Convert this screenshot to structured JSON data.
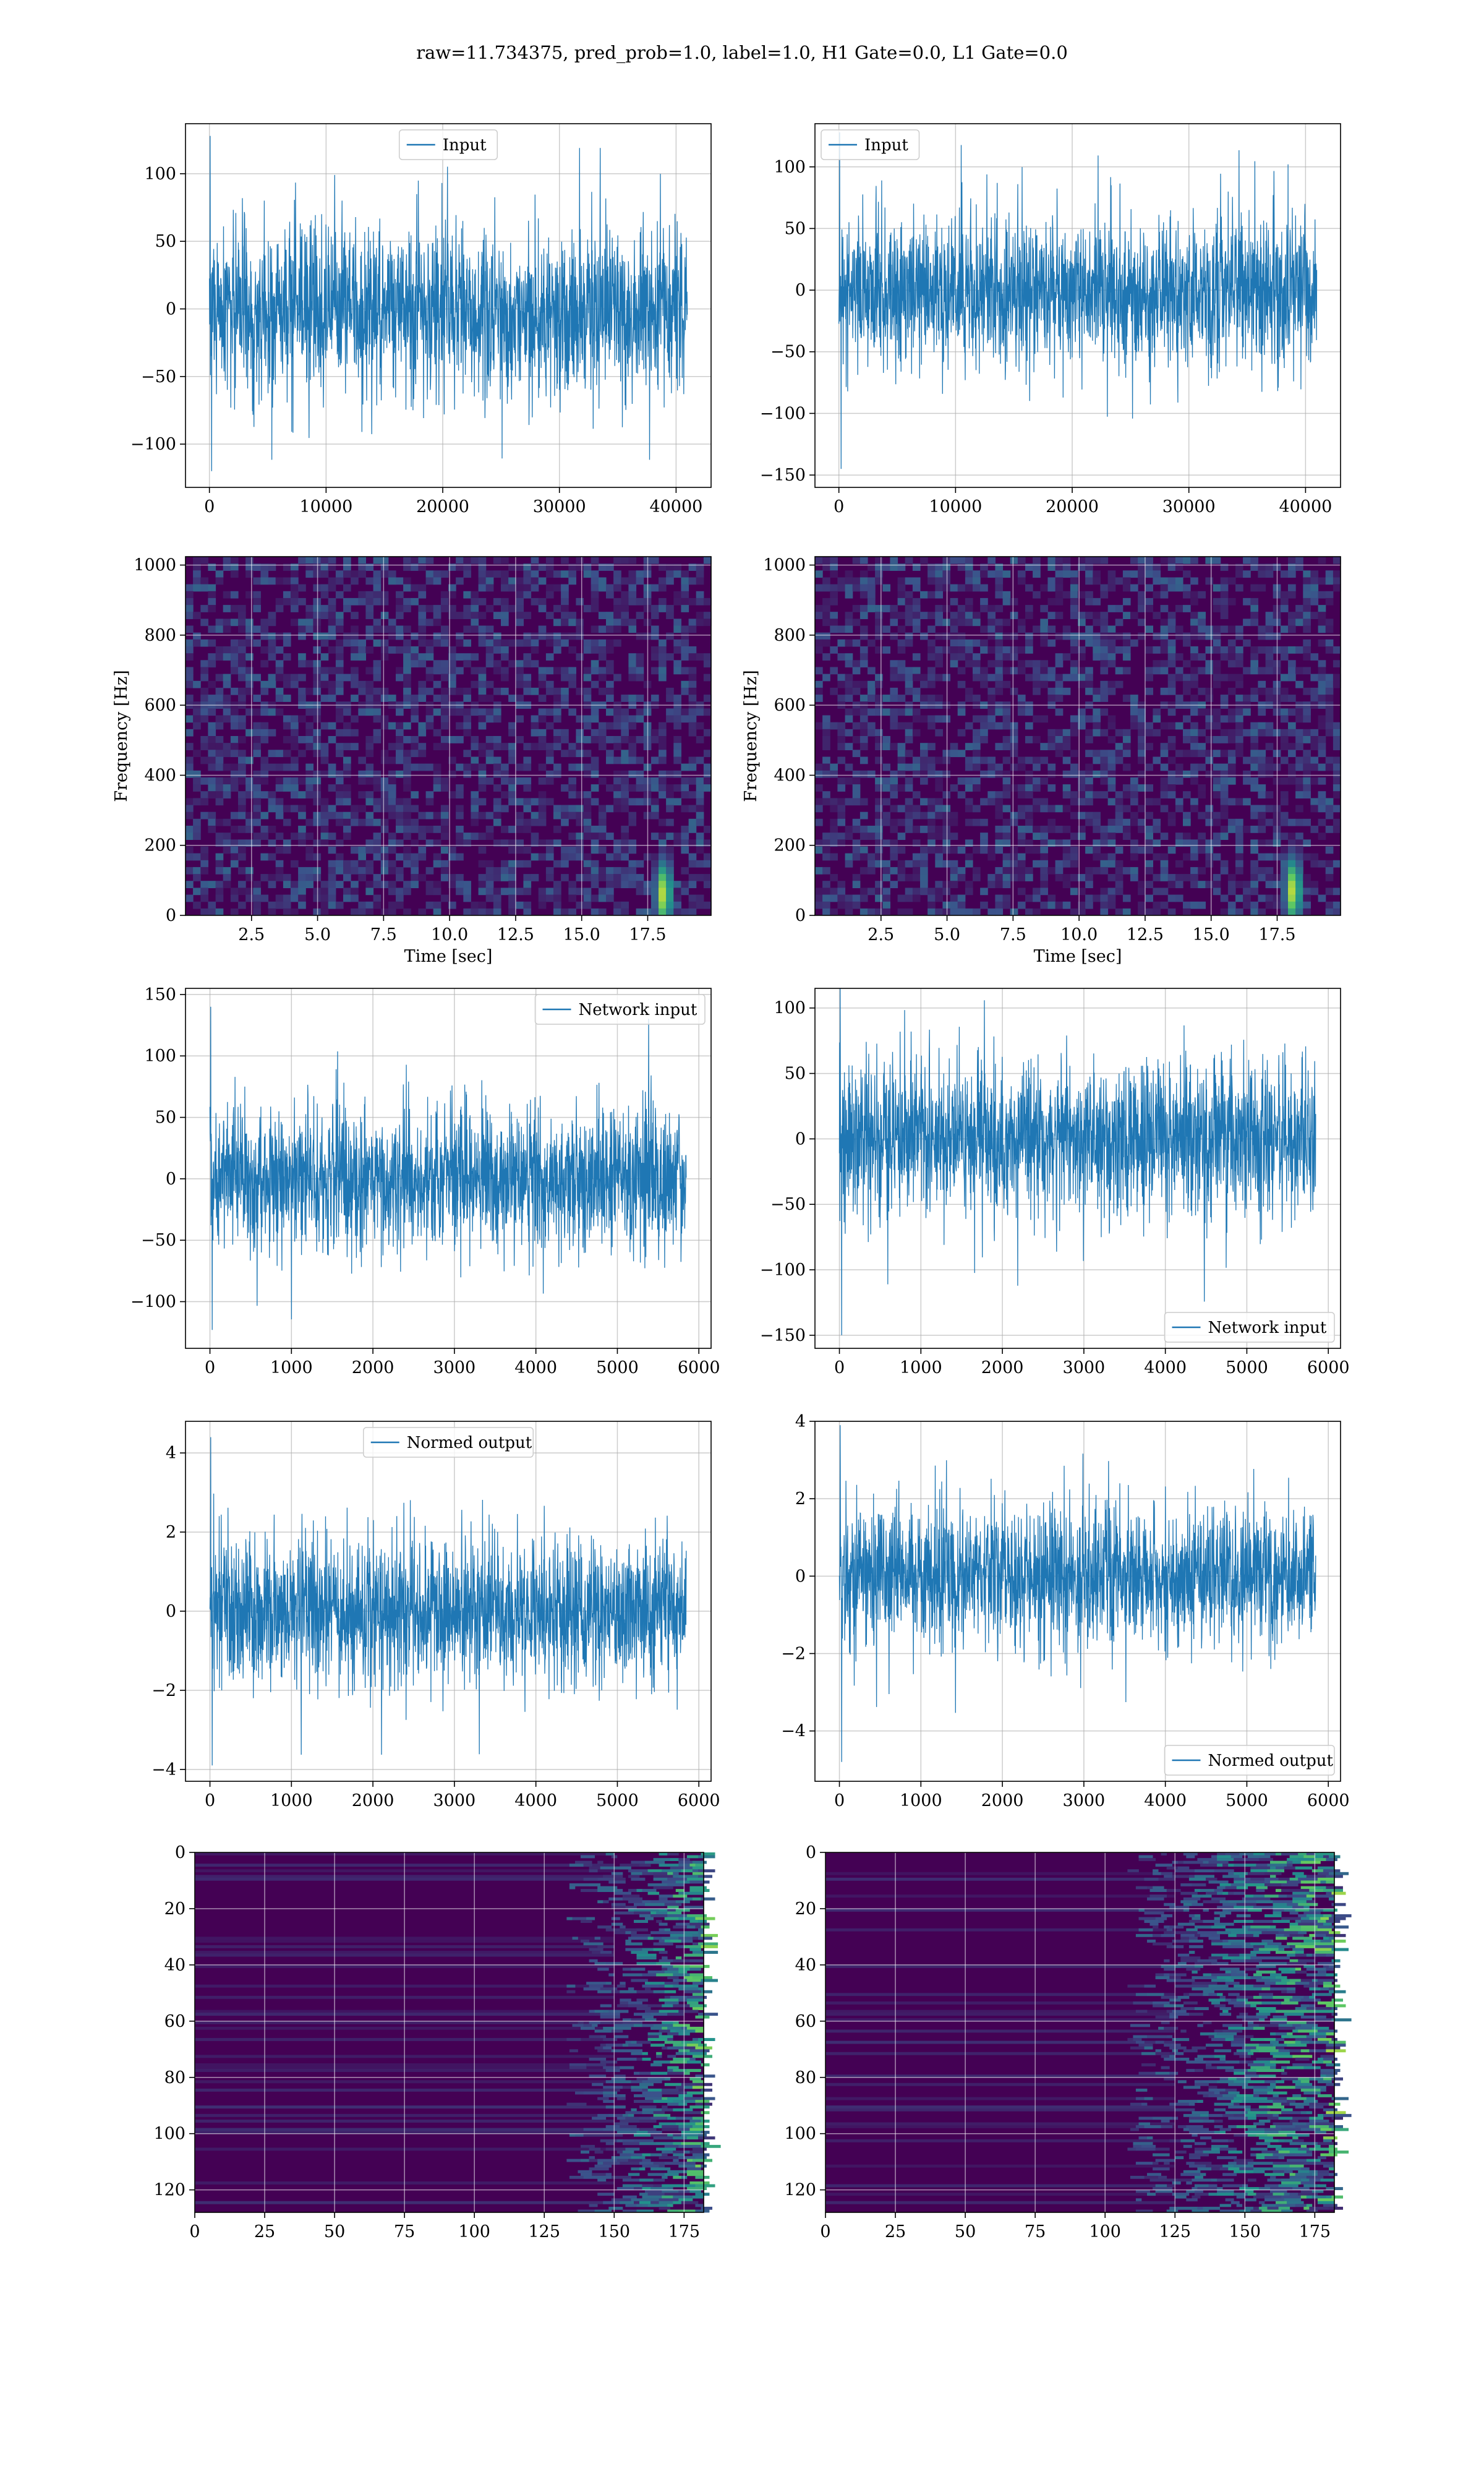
{
  "suptitle": "raw=11.734375, pred_prob=1.0, label=1.0, H1 Gate=0.0, L1 Gate=0.0",
  "colors": {
    "series": "#1f77b4",
    "grid": "#b0b0b0",
    "viridis_dark": "#440154"
  },
  "chart_data": [
    {
      "id": "ts-input-h1",
      "type": "line",
      "legend": "Input",
      "legend_loc": "upper center",
      "xlim": [
        -2050,
        43000
      ],
      "ylim": [
        -132,
        137
      ],
      "xticks": [
        0,
        10000,
        20000,
        30000,
        40000
      ],
      "xtick_labels": [
        "0",
        "10000",
        "20000",
        "30000",
        "40000"
      ],
      "yticks": [
        -100,
        -50,
        0,
        50,
        100
      ],
      "ytick_labels": [
        "−100",
        "−50",
        "0",
        "50",
        "100"
      ],
      "x_range": [
        0,
        40960
      ],
      "envelope": {
        "rms": 30,
        "max": 128,
        "min": -120
      },
      "grid": true
    },
    {
      "id": "ts-input-l1",
      "type": "line",
      "legend": "Input",
      "legend_loc": "upper left",
      "xlim": [
        -2050,
        43000
      ],
      "ylim": [
        -160,
        135
      ],
      "xticks": [
        0,
        10000,
        20000,
        30000,
        40000
      ],
      "xtick_labels": [
        "0",
        "10000",
        "20000",
        "30000",
        "40000"
      ],
      "yticks": [
        -150,
        -100,
        -50,
        0,
        50,
        100
      ],
      "ytick_labels": [
        "−150",
        "−100",
        "−50",
        "0",
        "50",
        "100"
      ],
      "x_range": [
        0,
        40960
      ],
      "envelope": {
        "rms": 30,
        "max": 128,
        "min": -145
      },
      "grid": true
    },
    {
      "id": "spec-h1",
      "type": "heatmap",
      "colormap": "viridis",
      "xlabel": "Time [sec]",
      "ylabel": "Frequency [Hz]",
      "xlim": [
        0,
        19.9
      ],
      "ylim": [
        0,
        1024
      ],
      "xticks": [
        2.5,
        5.0,
        7.5,
        10.0,
        12.5,
        15.0,
        17.5
      ],
      "xtick_labels": [
        "2.5",
        "5.0",
        "7.5",
        "10.0",
        "12.5",
        "15.0",
        "17.5"
      ],
      "yticks": [
        0,
        200,
        400,
        600,
        800,
        1000
      ],
      "ytick_labels": [
        "0",
        "200",
        "400",
        "600",
        "800",
        "1000"
      ],
      "hotspot": {
        "time": 18.1,
        "freq": 60
      },
      "grid": true
    },
    {
      "id": "spec-l1",
      "type": "heatmap",
      "colormap": "viridis",
      "xlabel": "Time [sec]",
      "ylabel": "Frequency [Hz]",
      "xlim": [
        0,
        19.9
      ],
      "ylim": [
        0,
        1024
      ],
      "xticks": [
        2.5,
        5.0,
        7.5,
        10.0,
        12.5,
        15.0,
        17.5
      ],
      "xtick_labels": [
        "2.5",
        "5.0",
        "7.5",
        "10.0",
        "12.5",
        "15.0",
        "17.5"
      ],
      "yticks": [
        0,
        200,
        400,
        600,
        800,
        1000
      ],
      "ytick_labels": [
        "0",
        "200",
        "400",
        "600",
        "800",
        "1000"
      ],
      "hotspot": {
        "time": 18.1,
        "freq": 70
      },
      "grid": true
    },
    {
      "id": "net-input-h1",
      "type": "line",
      "legend": "Network input",
      "legend_loc": "upper right",
      "xlim": [
        -300,
        6150
      ],
      "ylim": [
        -138,
        155
      ],
      "xticks": [
        0,
        1000,
        2000,
        3000,
        4000,
        5000,
        6000
      ],
      "xtick_labels": [
        "0",
        "1000",
        "2000",
        "3000",
        "4000",
        "5000",
        "6000"
      ],
      "yticks": [
        -100,
        -50,
        0,
        50,
        100,
        150
      ],
      "ytick_labels": [
        "−100",
        "−50",
        "0",
        "50",
        "100",
        "150"
      ],
      "x_range": [
        0,
        5845
      ],
      "envelope": {
        "rms": 28,
        "max": 140,
        "min": -123
      },
      "grid": true
    },
    {
      "id": "net-input-l1",
      "type": "line",
      "legend": "Network input",
      "legend_loc": "lower right",
      "xlim": [
        -300,
        6150
      ],
      "ylim": [
        -160,
        115
      ],
      "xticks": [
        0,
        1000,
        2000,
        3000,
        4000,
        5000,
        6000
      ],
      "xtick_labels": [
        "0",
        "1000",
        "2000",
        "3000",
        "4000",
        "5000",
        "6000"
      ],
      "yticks": [
        -150,
        -100,
        -50,
        0,
        50,
        100
      ],
      "ytick_labels": [
        "−150",
        "−100",
        "−50",
        "0",
        "50",
        "100"
      ],
      "x_range": [
        0,
        5845
      ],
      "envelope": {
        "rms": 28,
        "max": 115,
        "min": -150
      },
      "grid": true
    },
    {
      "id": "normed-h1",
      "type": "line",
      "legend": "Normed output",
      "legend_loc": "upper center",
      "xlim": [
        -300,
        6150
      ],
      "ylim": [
        -4.3,
        4.8
      ],
      "xticks": [
        0,
        1000,
        2000,
        3000,
        4000,
        5000,
        6000
      ],
      "xtick_labels": [
        "0",
        "1000",
        "2000",
        "3000",
        "4000",
        "5000",
        "6000"
      ],
      "yticks": [
        -4,
        -2,
        0,
        2,
        4
      ],
      "ytick_labels": [
        "−4",
        "−2",
        "0",
        "2",
        "4"
      ],
      "x_range": [
        0,
        5845
      ],
      "envelope": {
        "rms": 0.9,
        "max": 4.4,
        "min": -3.9
      },
      "grid": true
    },
    {
      "id": "normed-l1",
      "type": "line",
      "legend": "Normed output",
      "legend_loc": "lower right",
      "xlim": [
        -300,
        6150
      ],
      "ylim": [
        -5.3,
        4.0
      ],
      "xticks": [
        0,
        1000,
        2000,
        3000,
        4000,
        5000,
        6000
      ],
      "xtick_labels": [
        "0",
        "1000",
        "2000",
        "3000",
        "4000",
        "5000",
        "6000"
      ],
      "yticks": [
        -4,
        -2,
        0,
        2,
        4
      ],
      "ytick_labels": [
        "−4",
        "−2",
        "0",
        "2",
        "4"
      ],
      "x_range": [
        0,
        5845
      ],
      "envelope": {
        "rms": 0.9,
        "max": 3.9,
        "min": -4.8
      },
      "grid": true
    },
    {
      "id": "features-h1",
      "type": "heatmap",
      "colormap": "viridis",
      "xlim": [
        0,
        182
      ],
      "ylim": [
        128,
        0
      ],
      "xticks": [
        0,
        25,
        50,
        75,
        100,
        125,
        150,
        175
      ],
      "xtick_labels": [
        "0",
        "25",
        "50",
        "75",
        "100",
        "125",
        "150",
        "175"
      ],
      "yticks": [
        0,
        20,
        40,
        60,
        80,
        100,
        120
      ],
      "ytick_labels": [
        "0",
        "20",
        "40",
        "60",
        "80",
        "100",
        "120"
      ],
      "active_from_column": 150,
      "grid": true
    },
    {
      "id": "features-l1",
      "type": "heatmap",
      "colormap": "viridis",
      "xlim": [
        0,
        182
      ],
      "ylim": [
        128,
        0
      ],
      "xticks": [
        0,
        25,
        50,
        75,
        100,
        125,
        150,
        175
      ],
      "xtick_labels": [
        "0",
        "25",
        "50",
        "75",
        "100",
        "125",
        "150",
        "175"
      ],
      "yticks": [
        0,
        20,
        40,
        60,
        80,
        100,
        120
      ],
      "ytick_labels": [
        "0",
        "20",
        "40",
        "60",
        "80",
        "100",
        "120"
      ],
      "active_from_column": 125,
      "grid": true
    }
  ]
}
